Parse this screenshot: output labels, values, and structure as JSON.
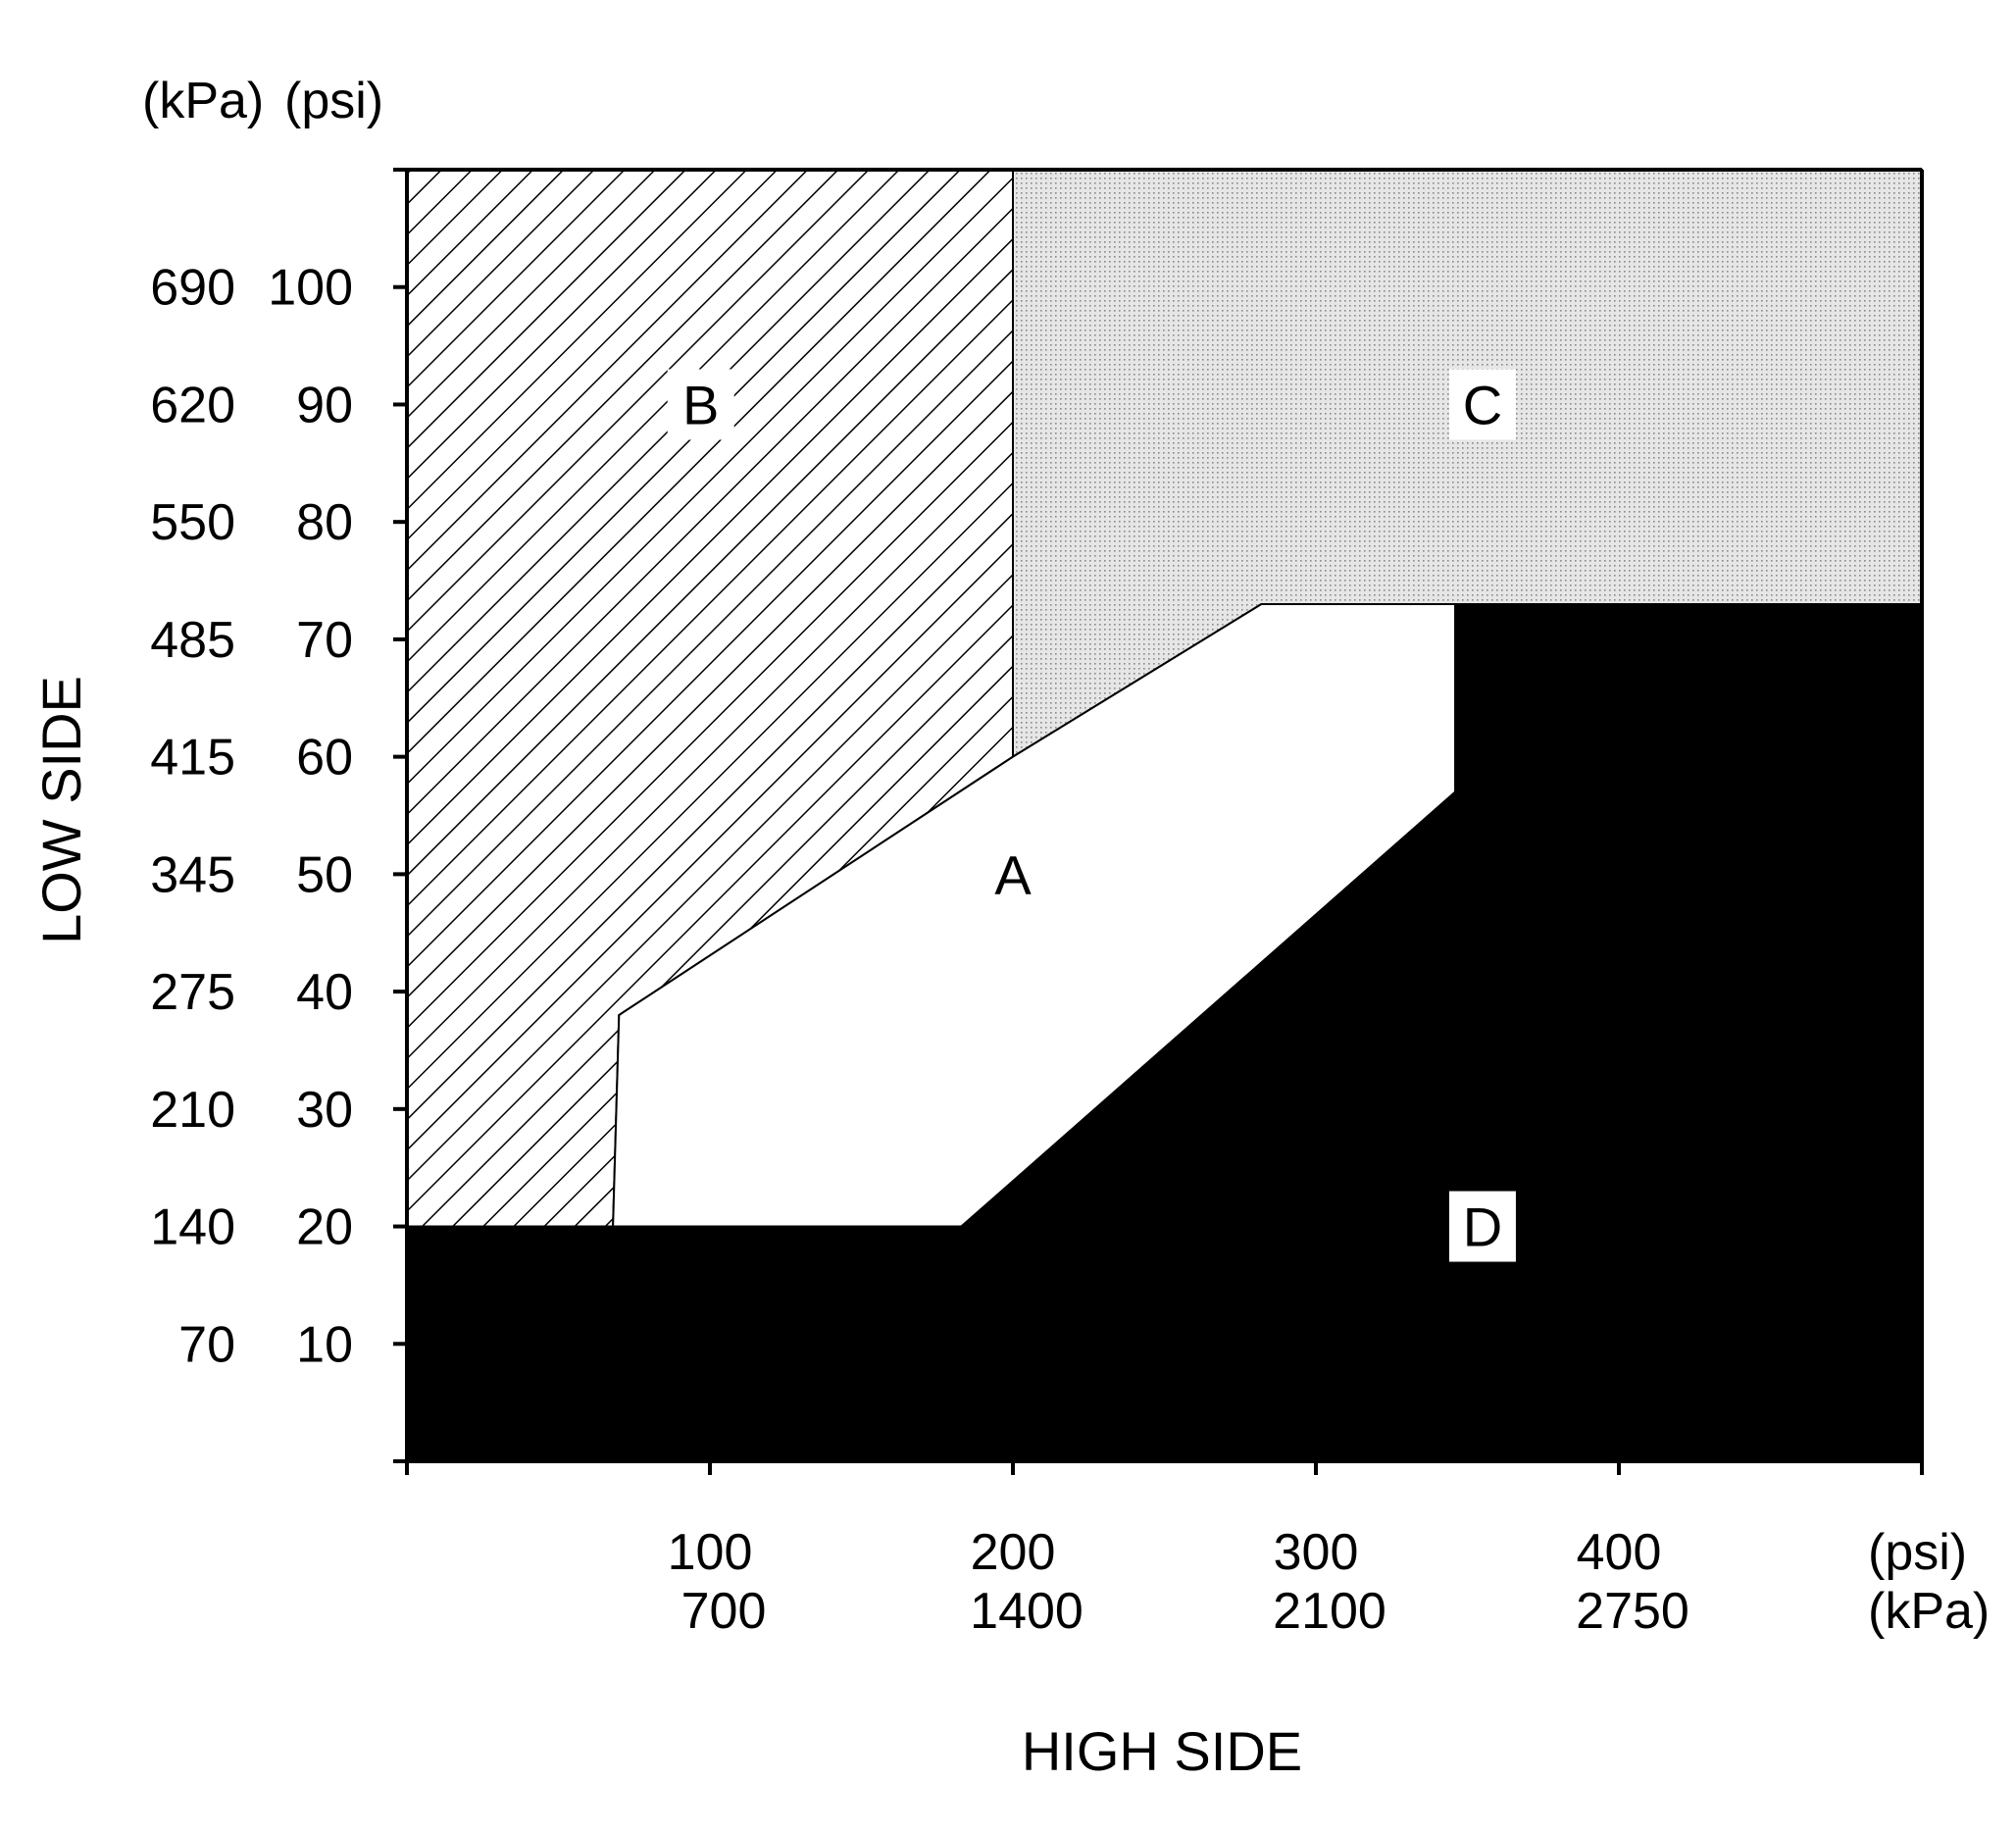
{
  "chart_data": {
    "type": "area",
    "title": "",
    "xlabel": "HIGH SIDE",
    "ylabel": "LOW SIDE",
    "y_units_header": [
      "(kPa)",
      "(psi)"
    ],
    "x_units": [
      "(psi)",
      "(kPa)"
    ],
    "xlim": [
      0,
      500
    ],
    "ylim": [
      0,
      110
    ],
    "x_ticks": [
      {
        "psi": 100,
        "psi_label": "100",
        "kpa_label": "700"
      },
      {
        "psi": 200,
        "psi_label": "200",
        "kpa_label": "1400"
      },
      {
        "psi": 300,
        "psi_label": "300",
        "kpa_label": "2100"
      },
      {
        "psi": 400,
        "psi_label": "400",
        "kpa_label": "2750"
      }
    ],
    "y_ticks": [
      {
        "psi": 10,
        "psi_label": "10",
        "kpa_label": "70"
      },
      {
        "psi": 20,
        "psi_label": "20",
        "kpa_label": "140"
      },
      {
        "psi": 30,
        "psi_label": "30",
        "kpa_label": "210"
      },
      {
        "psi": 40,
        "psi_label": "40",
        "kpa_label": "275"
      },
      {
        "psi": 50,
        "psi_label": "50",
        "kpa_label": "345"
      },
      {
        "psi": 60,
        "psi_label": "60",
        "kpa_label": "415"
      },
      {
        "psi": 70,
        "psi_label": "70",
        "kpa_label": "485"
      },
      {
        "psi": 80,
        "psi_label": "80",
        "kpa_label": "550"
      },
      {
        "psi": 90,
        "psi_label": "90",
        "kpa_label": "620"
      },
      {
        "psi": 100,
        "psi_label": "100",
        "kpa_label": "690"
      }
    ],
    "regions": [
      {
        "label": "B",
        "fill": "hatch",
        "label_at": [
          97,
          90
        ],
        "polygon": [
          [
            0,
            110
          ],
          [
            200,
            110
          ],
          [
            200,
            60
          ],
          [
            70,
            38
          ],
          [
            68,
            20
          ],
          [
            0,
            20
          ]
        ]
      },
      {
        "label": "C",
        "fill": "dots",
        "label_at": [
          355,
          90
        ],
        "polygon": [
          [
            200,
            110
          ],
          [
            500,
            110
          ],
          [
            500,
            73
          ],
          [
            282,
            73
          ],
          [
            200,
            60
          ]
        ]
      },
      {
        "label": "A",
        "fill": "#ffffff",
        "label_at": [
          200,
          50
        ],
        "polygon": [
          [
            70,
            38
          ],
          [
            200,
            60
          ],
          [
            282,
            73
          ],
          [
            346,
            73
          ],
          [
            346,
            57
          ],
          [
            183,
            20
          ],
          [
            68,
            20
          ]
        ]
      },
      {
        "label": "D",
        "fill": "#000000",
        "label_at": [
          355,
          20
        ],
        "polygon": [
          [
            0,
            0
          ],
          [
            500,
            0
          ],
          [
            500,
            73
          ],
          [
            346,
            73
          ],
          [
            346,
            57
          ],
          [
            183,
            20
          ],
          [
            0,
            20
          ]
        ]
      }
    ]
  }
}
